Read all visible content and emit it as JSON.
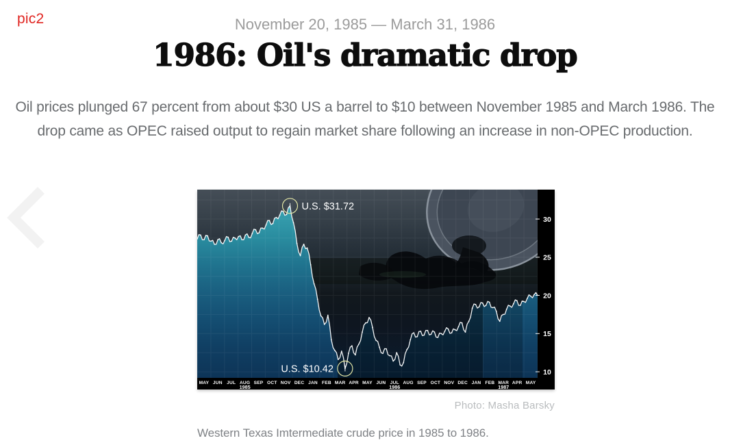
{
  "page": {
    "corner_label": "pic2",
    "date_range": "November 20, 1985 — March 31, 1986",
    "title": "1986: Oil's dramatic drop",
    "intro": "Oil prices plunged 67 percent from about $30 US a barrel to $10 between November 1985 and March 1986. The drop came as OPEC raised output to regain market share following an increase in non-OPEC production.",
    "photo_credit": "Photo: Masha Barsky",
    "caption": "Western Texas Imtermediate crude price in 1985 to 1986."
  },
  "colors": {
    "corner_label": "#e02420",
    "date_text": "#9b9b9b",
    "title_text": "#0d0d0d",
    "intro_text": "#686b6e",
    "credit_text": "#b9bcbe",
    "caption_text": "#7e8185"
  },
  "chart_data": {
    "type": "area",
    "title": "",
    "xlabel": "",
    "ylabel": "",
    "x_months": [
      "MAY",
      "JUN",
      "JUL",
      "AUG",
      "SEP",
      "OCT",
      "NOV",
      "DEC",
      "JAN",
      "FEB",
      "MAR",
      "APR",
      "MAY",
      "JUN",
      "JUL",
      "AUG",
      "SEP",
      "OCT",
      "NOV",
      "DEC",
      "JAN",
      "FEB",
      "MAR",
      "APR",
      "MAY"
    ],
    "year_labels": [
      {
        "label": "1985",
        "month_index": 3
      },
      {
        "label": "1986",
        "month_index": 14
      },
      {
        "label": "1987",
        "month_index": 22
      }
    ],
    "values": [
      27.4,
      27.9,
      27.3,
      27.8,
      27.1,
      26.7,
      27.3,
      26.9,
      27.2,
      27.6,
      27.1,
      27.5,
      27.7,
      27.3,
      27.9,
      27.6,
      28.1,
      28.6,
      28.2,
      28.8,
      29.2,
      29.8,
      29.4,
      30.2,
      30.5,
      31.0,
      30.6,
      31.72,
      29.5,
      26.8,
      25.2,
      26.7,
      26.2,
      24.0,
      21.5,
      19.5,
      17.3,
      16.2,
      17.4,
      14.2,
      12.8,
      11.6,
      12.7,
      10.42,
      12.4,
      13.4,
      12.2,
      13.6,
      15.2,
      16.4,
      17.1,
      15.8,
      14.1,
      13.2,
      12.4,
      13.0,
      12.1,
      11.4,
      12.5,
      10.9,
      11.2,
      12.9,
      14.2,
      15.1,
      14.6,
      15.3,
      14.8,
      15.4,
      14.9,
      15.2,
      14.5,
      15.0,
      15.3,
      15.6,
      15.1,
      15.5,
      15.9,
      16.4,
      15.2,
      16.6,
      18.3,
      18.8,
      18.5,
      19.0,
      18.7,
      19.1,
      18.4,
      17.9,
      16.6,
      17.5,
      18.2,
      18.6,
      18.9,
      19.3,
      18.7,
      19.2,
      19.6,
      19.9,
      20.1,
      20.0
    ],
    "ylim": [
      9.2,
      33.85
    ],
    "yticks": [
      10,
      15,
      20,
      25,
      30
    ],
    "grid": true,
    "legend": "none",
    "annotations": [
      {
        "label": "U.S. $31.72",
        "value": 31.72,
        "point_index": 27,
        "side": "right"
      },
      {
        "label": "U.S. $10.42",
        "value": 10.42,
        "point_index": 43,
        "side": "left"
      }
    ],
    "colors": {
      "line": "#f4f6f7",
      "fill_top": "#3aa4b2",
      "fill_bottom": "#0d3457",
      "bg_top": "#454e57",
      "bg_bottom": "#0b1c30",
      "axis_bg": "#000000",
      "axis_text": "#ffffff",
      "annotation_text": "#ffffff",
      "annotation_circle": "#e4e7a6"
    }
  }
}
